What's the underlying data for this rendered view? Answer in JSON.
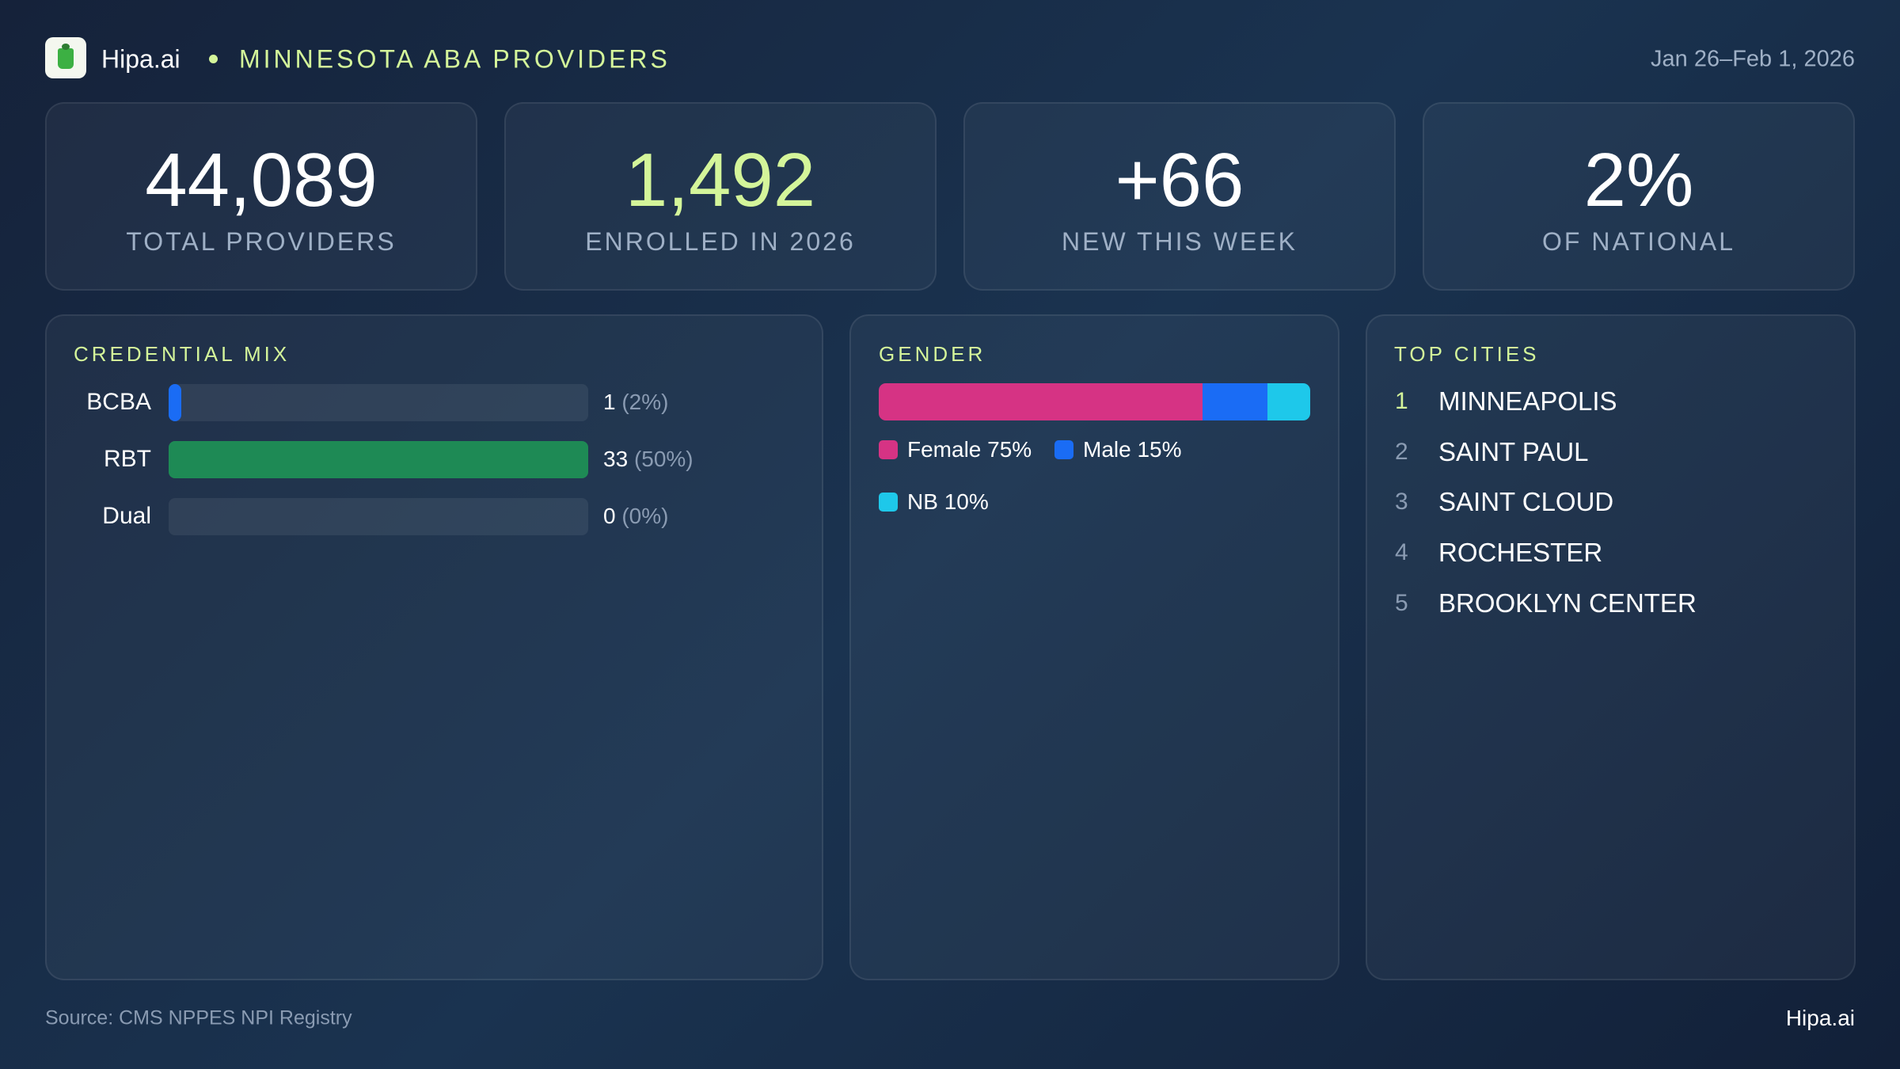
{
  "header": {
    "brand": "Hipa.ai",
    "title": "MINNESOTA ABA PROVIDERS",
    "date_range": "Jan 26–Feb 1, 2026"
  },
  "kpis": [
    {
      "value": "44,089",
      "label": "TOTAL PROVIDERS"
    },
    {
      "value": "1,492",
      "label": "ENROLLED IN 2026"
    },
    {
      "value": "+66",
      "label": "NEW THIS WEEK"
    },
    {
      "value": "2%",
      "label": "OF NATIONAL"
    }
  ],
  "credential_mix": {
    "type": "bar",
    "title": "CREDENTIAL MIX",
    "categories": [
      "BCBA",
      "RBT",
      "Dual"
    ],
    "values": [
      1,
      33,
      0
    ],
    "share_labels": [
      "(2%)",
      "(50%)",
      "(0%)"
    ],
    "colors": [
      "#1a6cf5",
      "#1e8a55",
      "#1e8a55"
    ],
    "xlim": [
      0,
      33
    ]
  },
  "gender": {
    "type": "stacked_bar",
    "title": "GENDER",
    "xlim": [
      0,
      100
    ],
    "series": [
      {
        "name": "Female",
        "color": "#d63384",
        "values": [
          75
        ],
        "value_labels": [
          "75%"
        ]
      },
      {
        "name": "Male",
        "color": "#1a6cf5",
        "values": [
          15
        ],
        "value_labels": [
          "15%"
        ]
      },
      {
        "name": "NB",
        "color": "#1ec8ea",
        "values": [
          10
        ],
        "value_labels": [
          "10%"
        ]
      }
    ]
  },
  "top_cities": {
    "title": "TOP CITIES",
    "items": [
      {
        "rank": 1,
        "name": "MINNEAPOLIS"
      },
      {
        "rank": 2,
        "name": "SAINT PAUL"
      },
      {
        "rank": 3,
        "name": "SAINT CLOUD"
      },
      {
        "rank": 4,
        "name": "ROCHESTER"
      },
      {
        "rank": 5,
        "name": "BROOKLYN CENTER"
      }
    ]
  },
  "footer": {
    "source": "Source: CMS NPPES NPI Registry",
    "brand": "Hipa.ai"
  }
}
